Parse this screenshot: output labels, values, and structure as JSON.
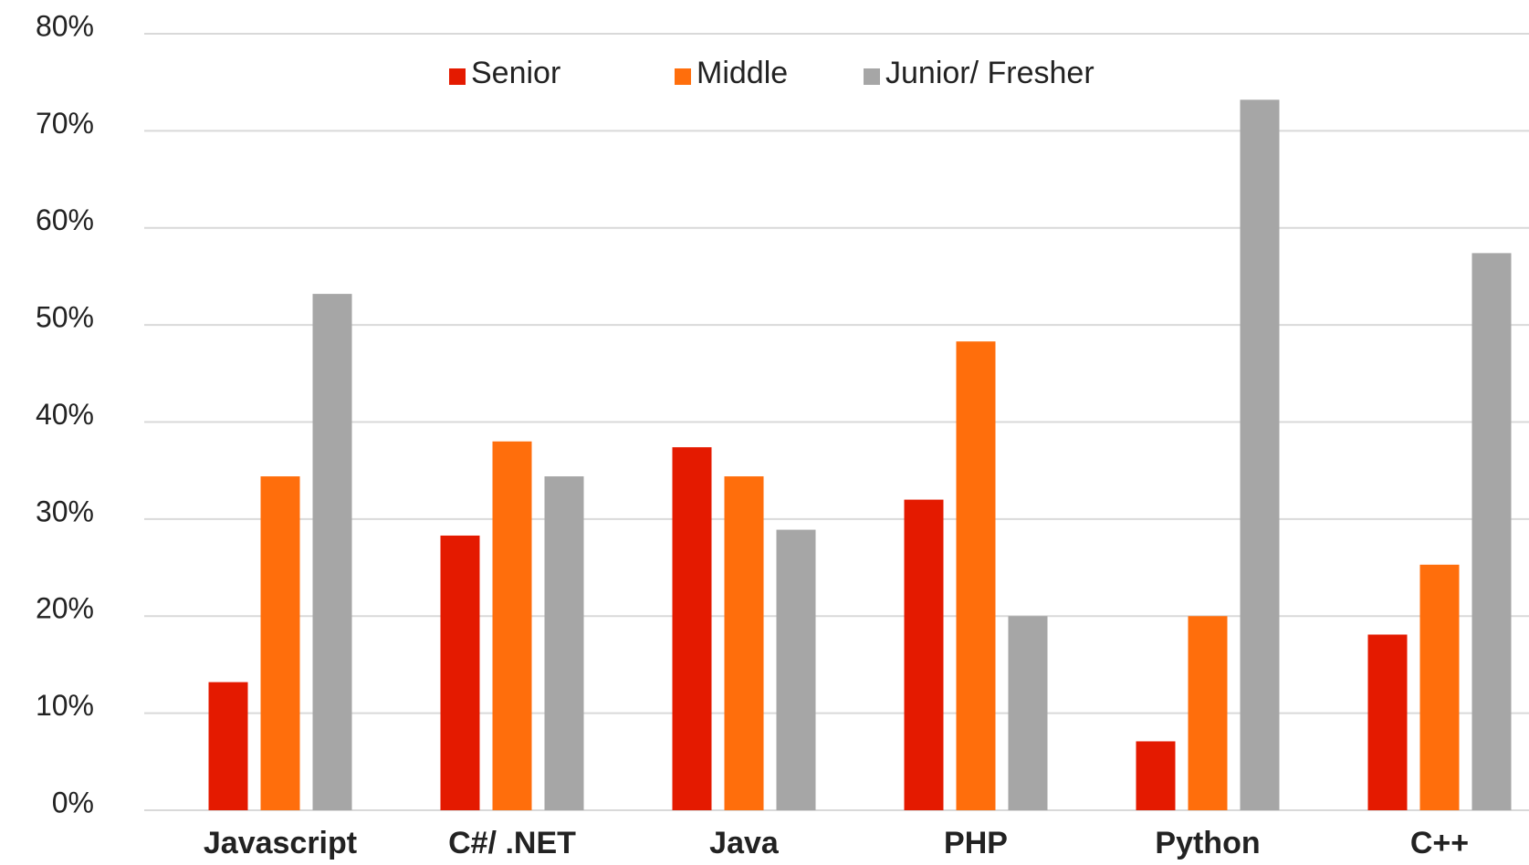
{
  "chart_data": {
    "type": "bar",
    "categories": [
      "Javascript",
      "C#/ .NET",
      "Java",
      "PHP",
      "Python",
      "C++"
    ],
    "series": [
      {
        "name": "Senior",
        "color": "#e41a00",
        "values": [
          13.2,
          28.3,
          37.4,
          32,
          7.1,
          18.1
        ]
      },
      {
        "name": "Middle",
        "color": "#ff6e0c",
        "values": [
          34.4,
          38,
          34.4,
          48.3,
          20,
          25.3
        ]
      },
      {
        "name": "Junior/ Fresher",
        "color": "#a6a6a6",
        "values": [
          53.2,
          34.4,
          28.9,
          20,
          73.2,
          57.4
        ]
      }
    ],
    "ylim": [
      0,
      80
    ],
    "yticks": [
      {
        "value": 0,
        "label": "0%"
      },
      {
        "value": 10,
        "label": "10%"
      },
      {
        "value": 20,
        "label": "20%"
      },
      {
        "value": 30,
        "label": "30%"
      },
      {
        "value": 40,
        "label": "40%"
      },
      {
        "value": 50,
        "label": "50%"
      },
      {
        "value": 60,
        "label": "60%"
      },
      {
        "value": 70,
        "label": "70%"
      },
      {
        "value": 80,
        "label": "80%"
      }
    ],
    "grid": true,
    "legend": "top"
  }
}
